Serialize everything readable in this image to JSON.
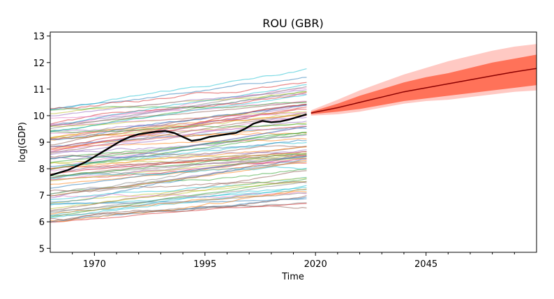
{
  "chart_data": {
    "type": "line",
    "title": "ROU (GBR)",
    "xlabel": "Time",
    "ylabel": "log(GDP)",
    "xlim": [
      1960,
      2070
    ],
    "ylim": [
      4.85,
      13.15
    ],
    "x_ticks": [
      1970,
      1995,
      2020,
      2045
    ],
    "y_ticks": [
      5,
      6,
      7,
      8,
      9,
      10,
      11,
      12,
      13
    ],
    "grid": false,
    "highlight_series": {
      "name": "ROU",
      "color": "#000000",
      "x": [
        1960,
        1962,
        1964,
        1966,
        1968,
        1970,
        1972,
        1974,
        1976,
        1978,
        1980,
        1982,
        1984,
        1986,
        1988,
        1990,
        1992,
        1994,
        1996,
        1998,
        2000,
        2002,
        2004,
        2006,
        2008,
        2010,
        2012,
        2014,
        2016,
        2018
      ],
      "y": [
        7.75,
        7.85,
        7.95,
        8.1,
        8.25,
        8.45,
        8.65,
        8.85,
        9.05,
        9.2,
        9.3,
        9.35,
        9.4,
        9.42,
        9.35,
        9.2,
        9.05,
        9.1,
        9.2,
        9.25,
        9.3,
        9.35,
        9.5,
        9.7,
        9.8,
        9.75,
        9.78,
        9.85,
        9.95,
        10.05
      ]
    },
    "forecast": {
      "color": "#8b0000",
      "inner_band_color": "#ff6347",
      "outer_band_color": "#ffc0b8",
      "x": [
        2019,
        2025,
        2030,
        2035,
        2040,
        2045,
        2050,
        2055,
        2060,
        2065,
        2070
      ],
      "median": [
        10.1,
        10.3,
        10.5,
        10.7,
        10.9,
        11.05,
        11.2,
        11.35,
        11.5,
        11.65,
        11.78
      ],
      "inner_low": [
        10.05,
        10.15,
        10.25,
        10.4,
        10.55,
        10.65,
        10.75,
        10.85,
        10.95,
        11.05,
        11.15
      ],
      "inner_high": [
        10.15,
        10.45,
        10.75,
        11.0,
        11.25,
        11.45,
        11.6,
        11.8,
        12.0,
        12.15,
        12.3
      ],
      "outer_low": [
        10.0,
        10.05,
        10.15,
        10.3,
        10.45,
        10.55,
        10.6,
        10.7,
        10.8,
        10.9,
        10.95
      ],
      "outer_high": [
        10.2,
        10.6,
        10.95,
        11.25,
        11.55,
        11.8,
        12.05,
        12.25,
        12.45,
        12.6,
        12.7
      ]
    },
    "background_series_count": 90,
    "background_palette": [
      "#1f77b4",
      "#ff7f0e",
      "#2ca02c",
      "#d62728",
      "#9467bd",
      "#8c564b",
      "#e377c2",
      "#7f7f7f",
      "#bcbd22",
      "#17becf"
    ],
    "background_series_span": [
      1960,
      2018
    ]
  }
}
